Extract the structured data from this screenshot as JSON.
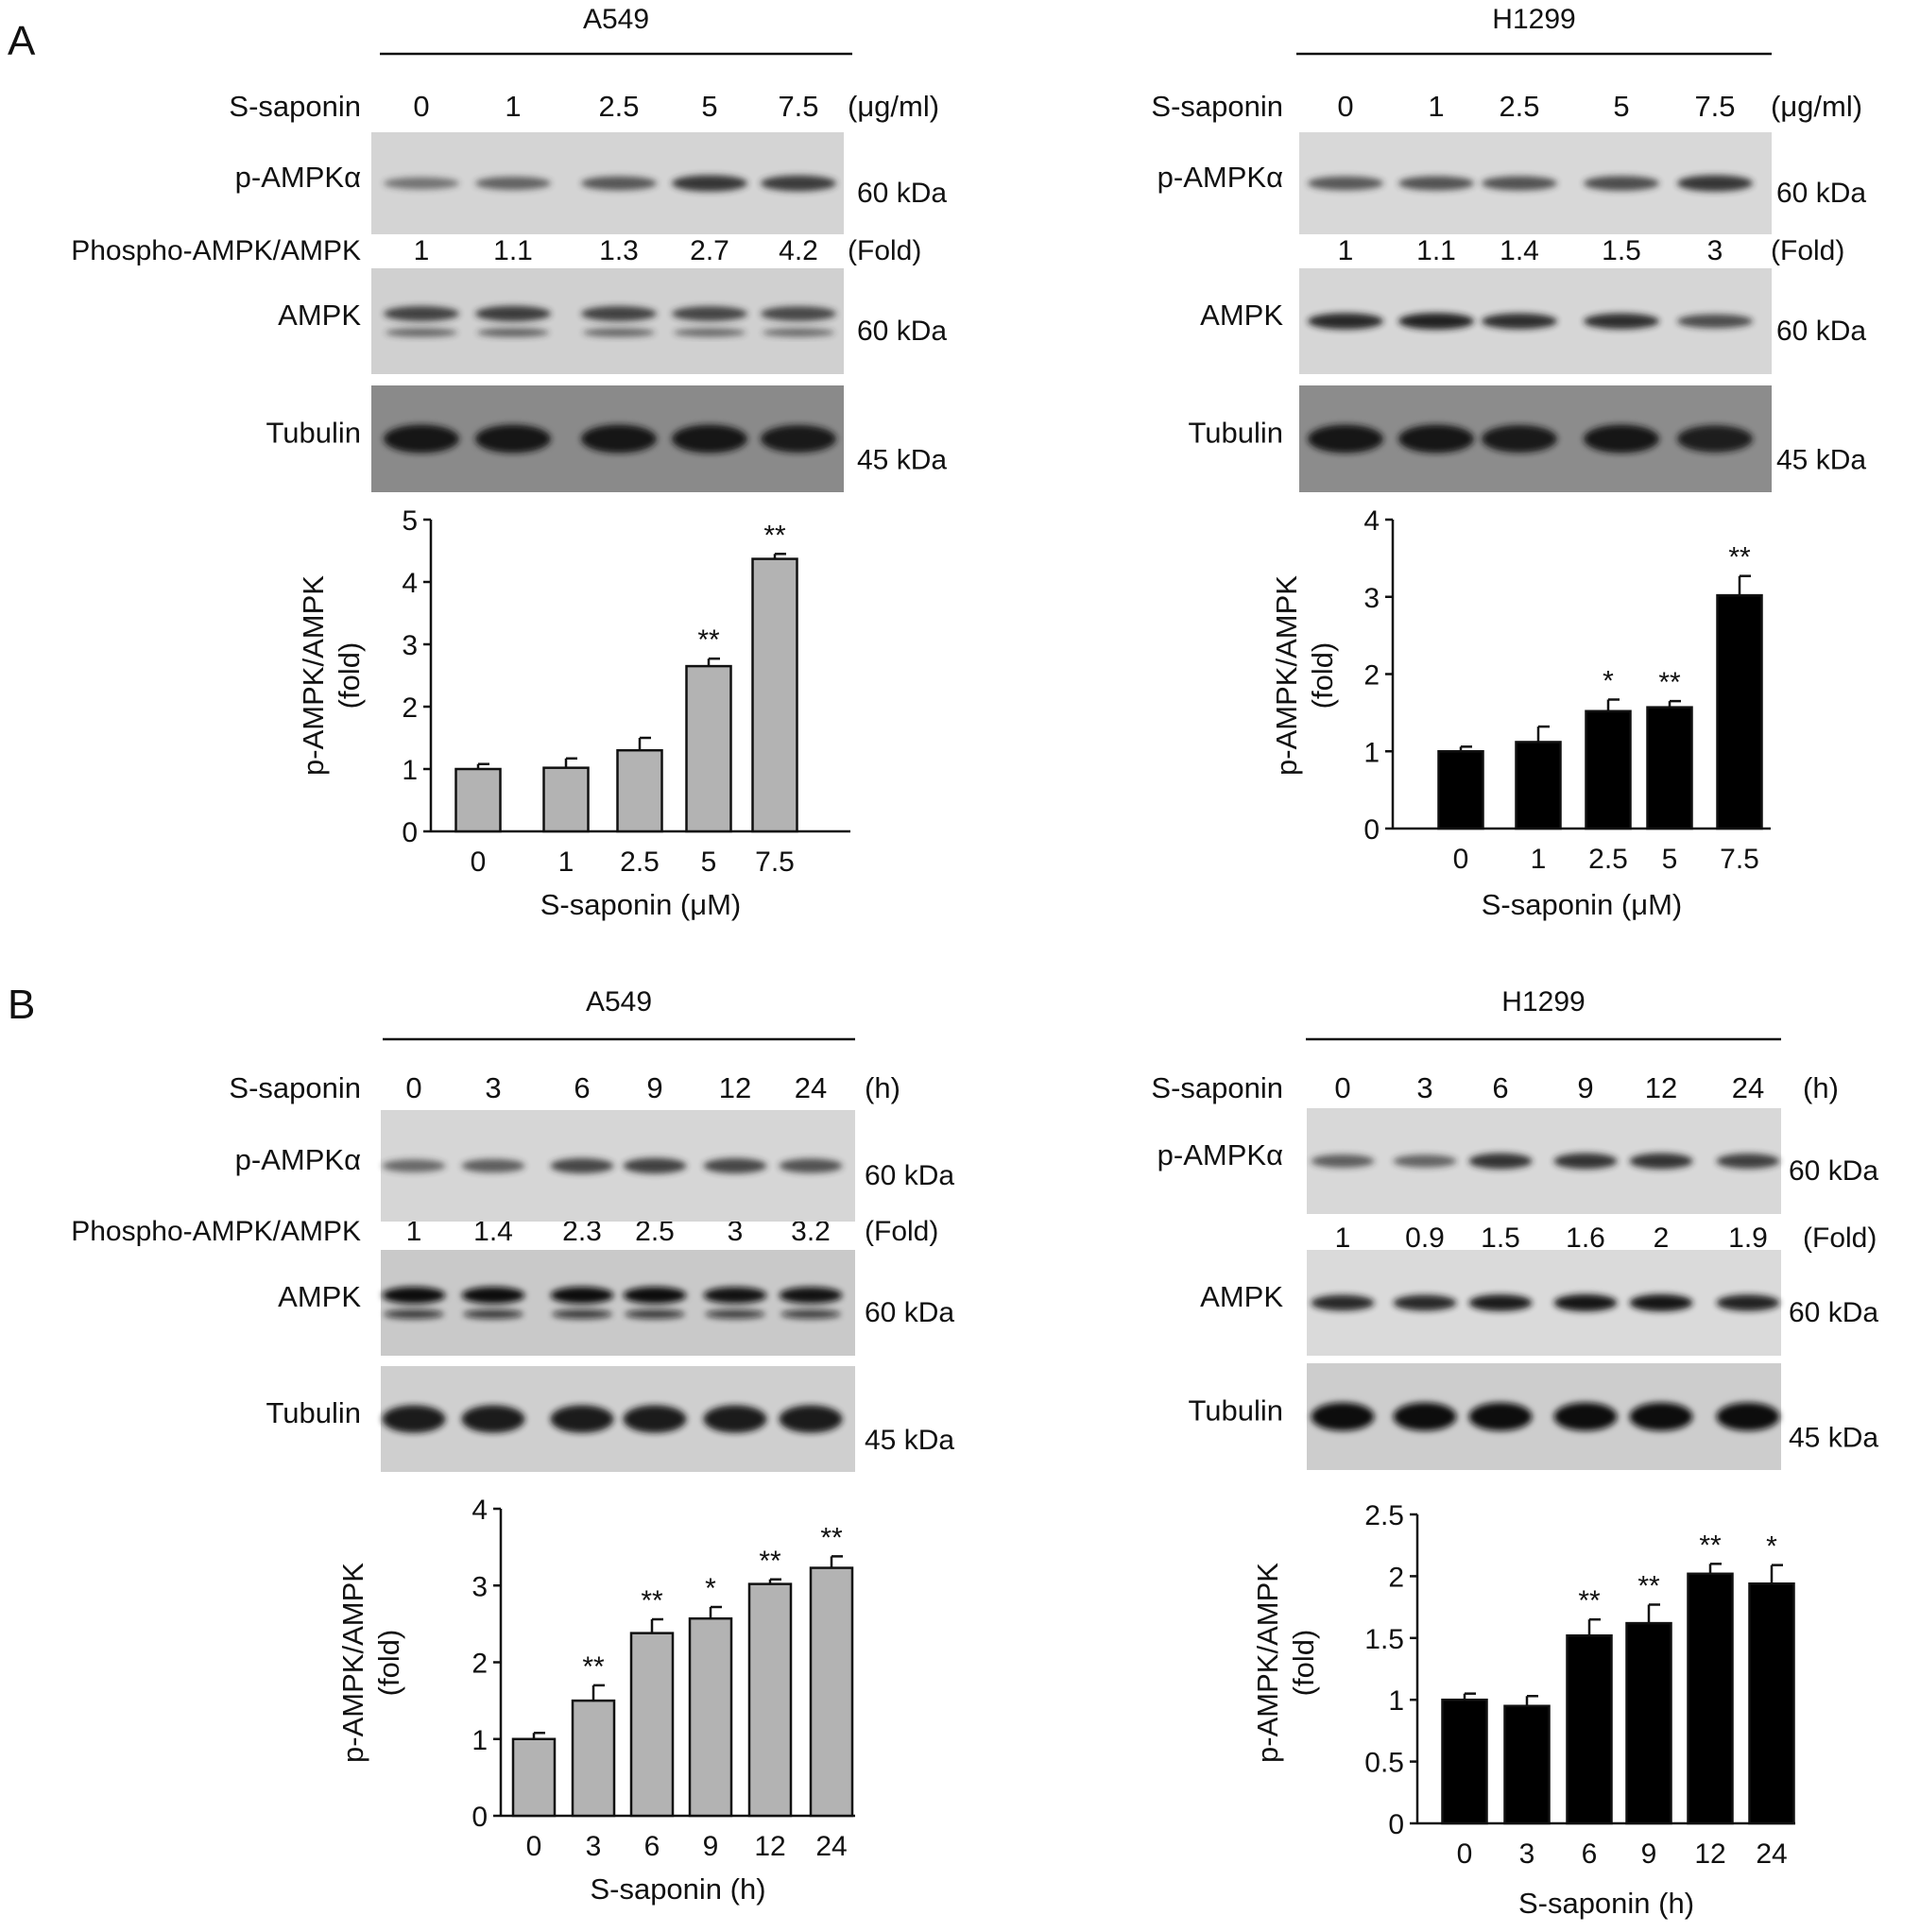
{
  "panel_letters": [
    "A",
    "B"
  ],
  "panels": [
    {
      "letter": "A",
      "blots": [
        {
          "cell": "A549",
          "label_col_width": "wide",
          "header_label": "S-saponin",
          "lanes": [
            "0",
            "1",
            "2.5",
            "5",
            "7.5"
          ],
          "unit": "(μg/ml)",
          "ratio_label": "Phospho-AMPK/AMPK",
          "ratios": [
            "1",
            "1.1",
            "1.3",
            "2.7",
            "4.2"
          ],
          "fold_label": "(Fold)",
          "rows": [
            {
              "name": "p-AMPKα",
              "kda": "60 kDa",
              "bg": "#d4d4d4",
              "band": "#2b2b2b",
              "intensity": [
                0.35,
                0.5,
                0.6,
                0.9,
                0.85
              ]
            },
            {
              "name": "AMPK",
              "kda": "60 kDa",
              "bg": "#d0d0d0",
              "band": "#262626",
              "intensity": [
                0.75,
                0.8,
                0.75,
                0.72,
                0.7
              ],
              "double": true
            },
            {
              "name": "Tubulin",
              "kda": "45 kDa",
              "bg": "#8a8a8a",
              "band": "#141414",
              "intensity": [
                1,
                1,
                1,
                1,
                0.95
              ]
            }
          ],
          "chart_data": {
            "type": "bar",
            "categories": [
              "0",
              "1",
              "2.5",
              "5",
              "7.5"
            ],
            "values": [
              1.0,
              1.02,
              1.3,
              2.65,
              4.37
            ],
            "errors": [
              0.08,
              0.15,
              0.2,
              0.12,
              0.08
            ],
            "significance": [
              "",
              "",
              "",
              "**",
              "**"
            ],
            "xlabel": "S-saponin (μM)",
            "ylabel": [
              "p-AMPK/AMPK",
              "(fold)"
            ],
            "ylim": [
              0,
              5
            ],
            "yticks": [
              "0",
              "1",
              "2",
              "3",
              "4",
              "5"
            ],
            "bar_color": "#b3b3b3",
            "grid": false
          }
        },
        {
          "cell": "H1299",
          "header_label": "S-saponin",
          "lanes": [
            "0",
            "1",
            "2.5",
            "5",
            "7.5"
          ],
          "unit": "(μg/ml)",
          "ratio_label": "",
          "ratios": [
            "1",
            "1.1",
            "1.4",
            "1.5",
            "3"
          ],
          "fold_label": "(Fold)",
          "rows": [
            {
              "name": "p-AMPKα",
              "kda": "60 kDa",
              "bg": "#d8d8d8",
              "band": "#2a2a2a",
              "intensity": [
                0.6,
                0.65,
                0.65,
                0.7,
                0.9
              ]
            },
            {
              "name": "AMPK",
              "kda": "60 kDa",
              "bg": "#d6d6d6",
              "band": "#1b1b1b",
              "intensity": [
                0.9,
                0.95,
                0.85,
                0.85,
                0.6
              ]
            },
            {
              "name": "Tubulin",
              "kda": "45 kDa",
              "bg": "#8c8c8c",
              "band": "#121212",
              "intensity": [
                1,
                1,
                0.95,
                1,
                0.9
              ]
            }
          ],
          "chart_data": {
            "type": "bar",
            "categories": [
              "0",
              "1",
              "2.5",
              "5",
              "7.5"
            ],
            "values": [
              1.0,
              1.12,
              1.52,
              1.57,
              3.02
            ],
            "errors": [
              0.06,
              0.2,
              0.15,
              0.08,
              0.25
            ],
            "significance": [
              "",
              "",
              "*",
              "**",
              "**"
            ],
            "xlabel": "S-saponin (μM)",
            "ylabel": [
              "p-AMPK/AMPK",
              "(fold)"
            ],
            "ylim": [
              0,
              4
            ],
            "yticks": [
              "0",
              "1",
              "2",
              "3",
              "4"
            ],
            "bar_color": "#000000",
            "grid": false
          }
        }
      ]
    },
    {
      "letter": "B",
      "blots": [
        {
          "cell": "A549",
          "header_label": "S-saponin",
          "lanes": [
            "0",
            "3",
            "6",
            "9",
            "12",
            "24"
          ],
          "unit": "(h)",
          "ratio_label": "Phospho-AMPK/AMPK",
          "ratios": [
            "1",
            "1.4",
            "2.3",
            "2.5",
            "3",
            "3.2"
          ],
          "fold_label": "(Fold)",
          "rows": [
            {
              "name": "p-AMPKα",
              "kda": "60 kDa",
              "bg": "#d6d6d6",
              "band": "#2b2b2b",
              "intensity": [
                0.45,
                0.55,
                0.75,
                0.8,
                0.75,
                0.65
              ]
            },
            {
              "name": "AMPK",
              "kda": "60 kDa",
              "bg": "#c9c9c9",
              "band": "#111111",
              "intensity": [
                1,
                1,
                1,
                1,
                0.95,
                0.95
              ],
              "double": true
            },
            {
              "name": "Tubulin",
              "kda": "45 kDa",
              "bg": "#cfcfcf",
              "band": "#141414",
              "intensity": [
                0.95,
                0.95,
                0.95,
                0.95,
                0.95,
                0.95
              ]
            }
          ],
          "chart_data": {
            "type": "bar",
            "categories": [
              "0",
              "3",
              "6",
              "9",
              "12",
              "24"
            ],
            "values": [
              1.0,
              1.5,
              2.38,
              2.57,
              3.02,
              3.23
            ],
            "errors": [
              0.08,
              0.2,
              0.18,
              0.15,
              0.06,
              0.15
            ],
            "significance": [
              "",
              "**",
              "**",
              "*",
              "**",
              "**"
            ],
            "xlabel": "S-saponin (h)",
            "ylabel": [
              "p-AMPK/AMPK",
              "(fold)"
            ],
            "ylim": [
              0,
              4
            ],
            "yticks": [
              "0",
              "1",
              "2",
              "3",
              "4"
            ],
            "bar_color": "#b3b3b3",
            "grid": false
          }
        },
        {
          "cell": "H1299",
          "header_label": "S-saponin",
          "lanes": [
            "0",
            "3",
            "6",
            "9",
            "12",
            "24"
          ],
          "unit": "(h)",
          "ratio_label": "",
          "ratios": [
            "1",
            "0.9",
            "1.5",
            "1.6",
            "2",
            "1.9"
          ],
          "fold_label": "(Fold)",
          "rows": [
            {
              "name": "p-AMPKα",
              "kda": "60 kDa",
              "bg": "#d8d8d8",
              "band": "#202020",
              "intensity": [
                0.5,
                0.45,
                0.85,
                0.85,
                0.85,
                0.75
              ]
            },
            {
              "name": "AMPK",
              "kda": "60 kDa",
              "bg": "#dadada",
              "band": "#181818",
              "intensity": [
                0.85,
                0.85,
                0.95,
                1,
                1,
                0.9
              ]
            },
            {
              "name": "Tubulin",
              "kda": "45 kDa",
              "bg": "#cdcdcd",
              "band": "#101010",
              "intensity": [
                1,
                1,
                1,
                1,
                1,
                1
              ]
            }
          ],
          "chart_data": {
            "type": "bar",
            "categories": [
              "0",
              "3",
              "6",
              "9",
              "12",
              "24"
            ],
            "values": [
              1.0,
              0.95,
              1.52,
              1.62,
              2.02,
              1.94
            ],
            "errors": [
              0.05,
              0.08,
              0.13,
              0.15,
              0.08,
              0.15
            ],
            "significance": [
              "",
              "",
              "**",
              "**",
              "**",
              "*"
            ],
            "xlabel": "S-saponin (h)",
            "ylabel": [
              "p-AMPK/AMPK",
              "(fold)"
            ],
            "ylim": [
              0,
              2.5
            ],
            "yticks": [
              "0",
              "0.5",
              "1",
              "1.5",
              "2",
              "2.5"
            ],
            "bar_color": "#000000",
            "grid": false
          }
        }
      ]
    }
  ]
}
